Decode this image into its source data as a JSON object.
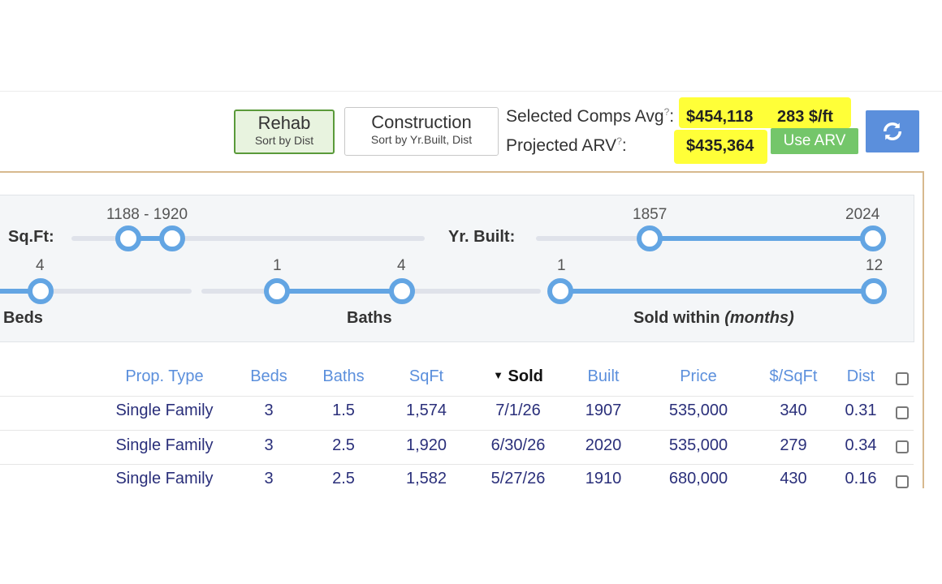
{
  "sort_buttons": {
    "rehab": {
      "label": "Rehab",
      "sub": "Sort by Dist"
    },
    "construction": {
      "label": "Construction",
      "sub": "Sort by Yr.Built, Dist"
    }
  },
  "summary": {
    "selected_label": "Selected Comps Avg",
    "help_mark": "?",
    "selected_colon": ":",
    "selected_avg": "$454,118",
    "selected_per_sqft": "283 $/ft",
    "projected_label": "Projected ARV",
    "projected_colon": ":",
    "projected_arv": "$435,364",
    "use_arv": "Use ARV",
    "highlight_color": "#ffff38"
  },
  "refresh_icon": "refresh-icon",
  "filters": {
    "sqft": {
      "label": "Sq.Ft:",
      "range_text": "1188 - 1920",
      "min": 1188,
      "max": 1920
    },
    "yr_built": {
      "label": "Yr. Built:",
      "min": "1857",
      "max": "2024"
    },
    "beds": {
      "label": "Beds",
      "max": "4"
    },
    "baths": {
      "label": "Baths",
      "min": "1",
      "max": "4"
    },
    "sold_within": {
      "label": "Sold within",
      "unit": "(months)",
      "min": "1",
      "max": "12"
    }
  },
  "table": {
    "columns": [
      "Prop. Type",
      "Beds",
      "Baths",
      "SqFt",
      "Sold",
      "Built",
      "Price",
      "$/SqFt",
      "Dist"
    ],
    "sort_indicator": "▼",
    "rows": [
      [
        "Single Family",
        "3",
        "1.5",
        "1,574",
        "7/1/26",
        "1907",
        "535,000",
        "340",
        "0.31"
      ],
      [
        "Single Family",
        "3",
        "2.5",
        "1,920",
        "6/30/26",
        "2020",
        "535,000",
        "279",
        "0.34"
      ],
      [
        "Single Family",
        "3",
        "2.5",
        "1,582",
        "5/27/26",
        "1910",
        "680,000",
        "430",
        "0.16"
      ]
    ]
  },
  "colors": {
    "accent": "#63a5e3",
    "link": "#5b8fdc",
    "use_arv": "#74c66a",
    "rehab_border": "#5a9a3a"
  }
}
